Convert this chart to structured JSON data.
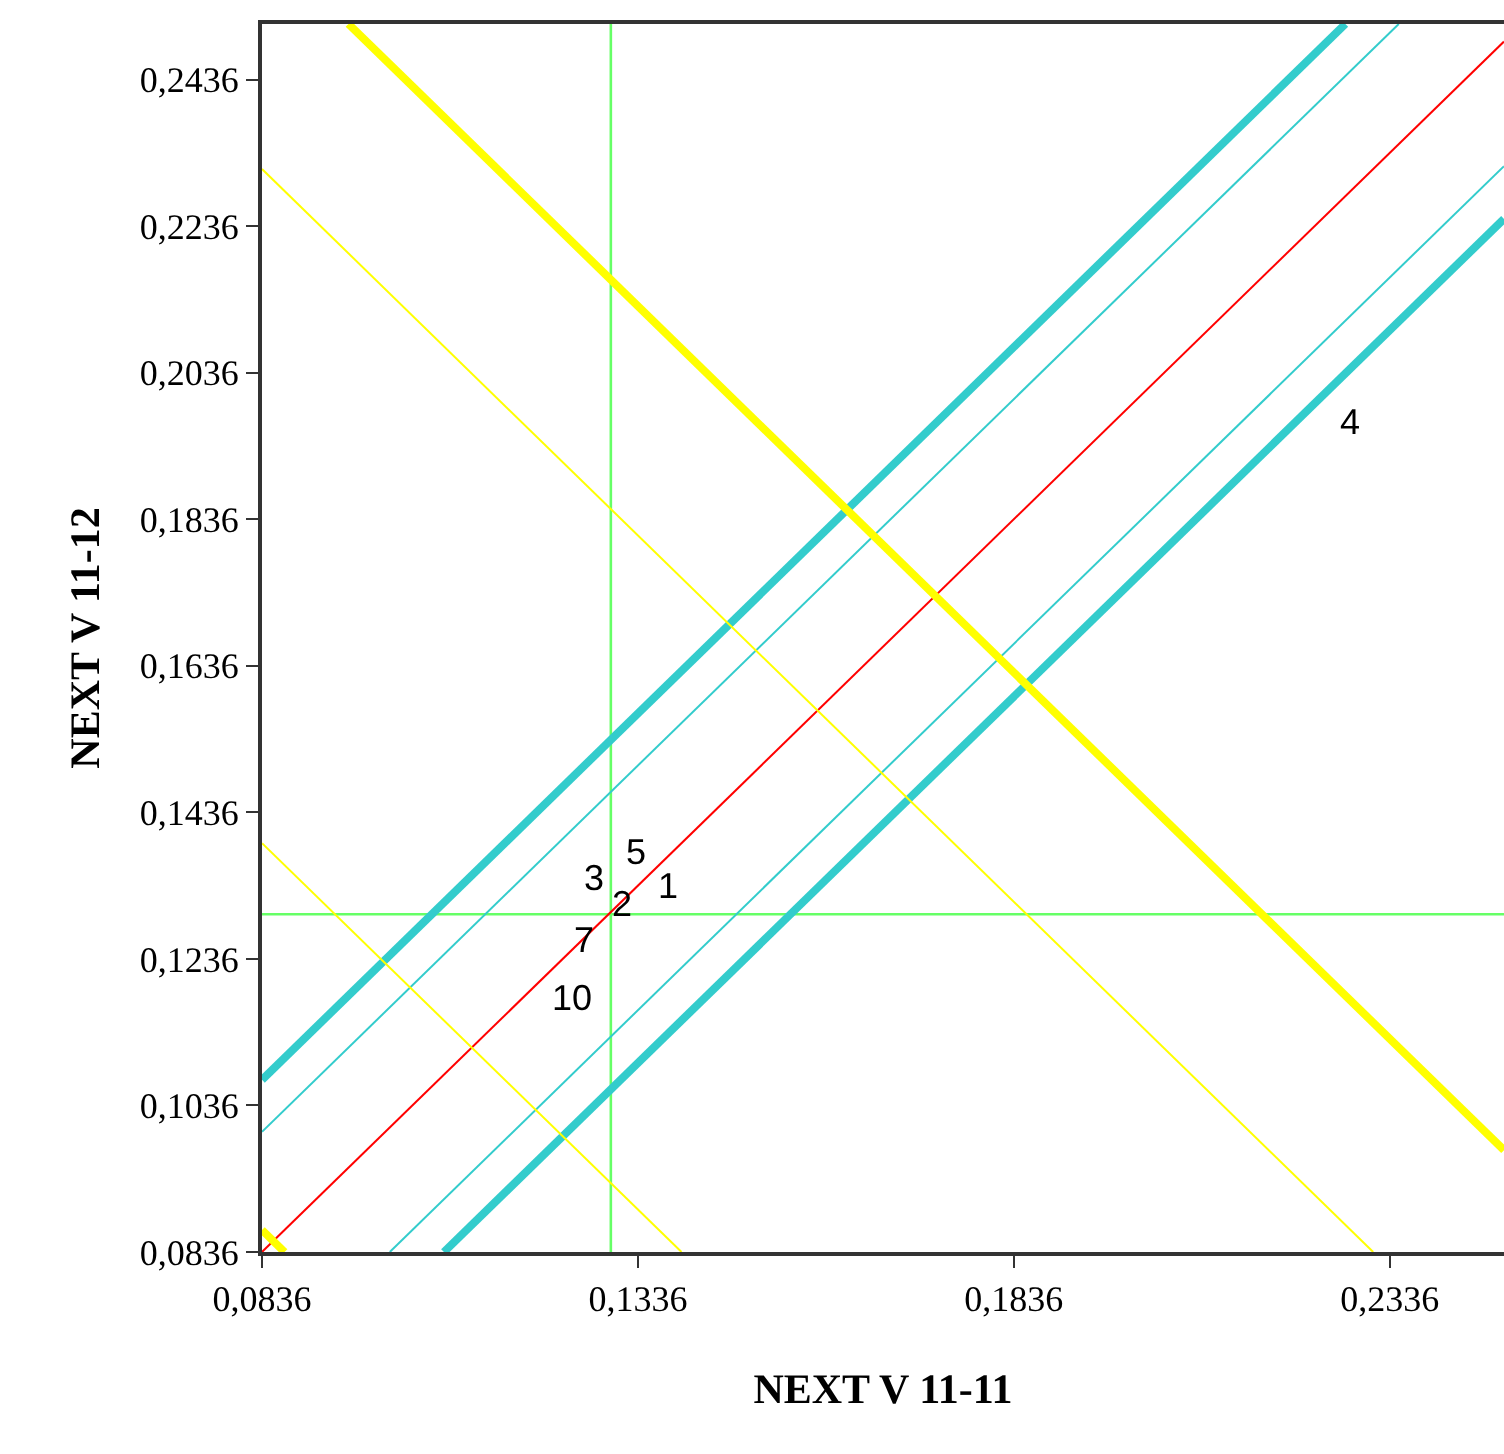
{
  "chart_data": {
    "type": "line",
    "xlabel": "NEXT V 11-11",
    "ylabel": "NEXT V 11-12",
    "xlim": [
      0.0836,
      0.2488
    ],
    "ylim": [
      0.0836,
      0.2512
    ],
    "xticks": [
      {
        "value": 0.0836,
        "label": "0,0836"
      },
      {
        "value": 0.1336,
        "label": "0,1336"
      },
      {
        "value": 0.1836,
        "label": "0,1836"
      },
      {
        "value": 0.2336,
        "label": "0,2336"
      }
    ],
    "yticks": [
      {
        "value": 0.0836,
        "label": "0,0836"
      },
      {
        "value": 0.1036,
        "label": "0,1036"
      },
      {
        "value": 0.1236,
        "label": "0,1236"
      },
      {
        "value": 0.1436,
        "label": "0,1436"
      },
      {
        "value": 0.1636,
        "label": "0,1636"
      },
      {
        "value": 0.1836,
        "label": "0,1836"
      },
      {
        "value": 0.2036,
        "label": "0,2036"
      },
      {
        "value": 0.2236,
        "label": "0,2236"
      },
      {
        "value": 0.2436,
        "label": "0,2436"
      }
    ],
    "grid": false,
    "legend": false,
    "marker": "none",
    "line_style": "solid",
    "series": [
      {
        "color": "#ff0000",
        "x": [
          0.0836,
          0.2488
        ],
        "values": [
          0.0836,
          0.2488
        ]
      },
      {
        "color": "#33cccc",
        "x": [
          0.0836,
          0.2277
        ],
        "values": [
          0.1071,
          0.2512
        ]
      },
      {
        "color": "#33cccc",
        "x": [
          0.0836,
          0.2348
        ],
        "values": [
          0.1,
          0.2512
        ]
      },
      {
        "color": "#33cccc",
        "x": [
          0.1006,
          0.2488
        ],
        "values": [
          0.0836,
          0.2318
        ]
      },
      {
        "color": "#33cccc",
        "x": [
          0.1078,
          0.2488
        ],
        "values": [
          0.0836,
          0.2246
        ]
      },
      {
        "color": "#ffff00",
        "x": [
          0.0951,
          0.2488
        ],
        "values": [
          0.2512,
          0.0975
        ]
      },
      {
        "color": "#ffff00",
        "x": [
          0.0836,
          0.2314
        ],
        "values": [
          0.2314,
          0.0836
        ]
      },
      {
        "color": "#ffff00",
        "x": [
          0.0836,
          0.1394
        ],
        "values": [
          0.1394,
          0.0836
        ]
      },
      {
        "color": "#ffff00",
        "x": [
          0.0836,
          0.0866
        ],
        "values": [
          0.0866,
          0.0836
        ]
      }
    ],
    "ref_lines": [
      {
        "axis": "x",
        "value": 0.13,
        "color": "#66ff66"
      },
      {
        "axis": "y",
        "value": 0.1297,
        "color": "#66ff66"
      }
    ],
    "annotations": [
      "1",
      "2",
      "3",
      "5",
      "7",
      "10",
      "4"
    ]
  }
}
